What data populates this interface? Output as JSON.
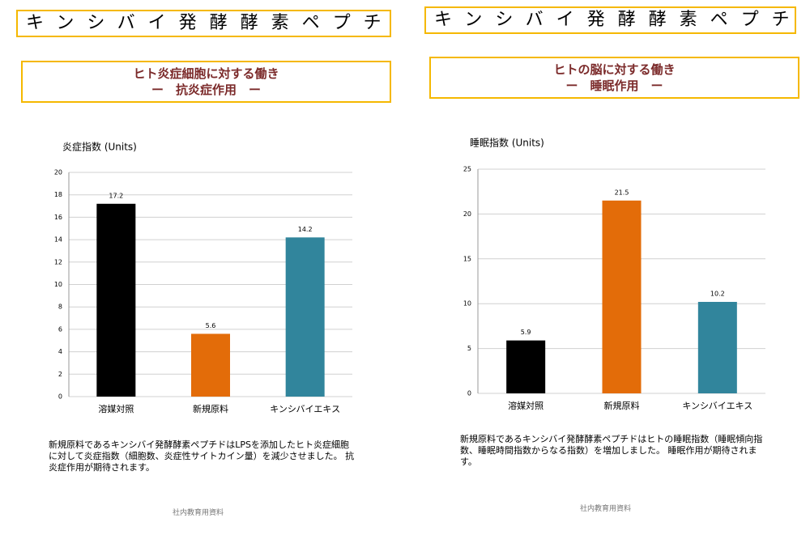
{
  "chart_data": [
    {
      "type": "bar",
      "header": "キンシバイ発酵酵素ペプチド",
      "title": "ヒト炎症細胞に対する働き",
      "subtitle": "ー　抗炎症作用　ー",
      "ylabel": "炎症指数 (Units)",
      "categories": [
        "溶媒対照",
        "新規原料",
        "キンシバイエキス"
      ],
      "values": [
        17.2,
        5.6,
        14.2
      ],
      "colors": [
        "#000000",
        "#e36c09",
        "#31859c"
      ],
      "ylim": [
        0,
        20
      ],
      "yticks": [
        0,
        2,
        4,
        6,
        8,
        10,
        12,
        14,
        16,
        18,
        20
      ],
      "grid": true,
      "caption": "新規原料であるキンシバイ発酵酵素ペプチドはLPSを添加したヒト炎症細胞に対して炎症指数（細胞数、炎症性サイトカイン量）を減少させました。 抗炎症作用が期待されます。",
      "footer": "社内教育用資料"
    },
    {
      "type": "bar",
      "header": "キンシバイ発酵酵素ペプチド",
      "title": "ヒトの脳に対する働き",
      "subtitle": "ー　睡眠作用　ー",
      "ylabel": "睡眠指数 (Units)",
      "categories": [
        "溶媒対照",
        "新規原料",
        "キンシバイエキス"
      ],
      "values": [
        5.9,
        21.5,
        10.2
      ],
      "colors": [
        "#000000",
        "#e36c09",
        "#31859c"
      ],
      "ylim": [
        0,
        25
      ],
      "yticks": [
        0,
        5,
        10,
        15,
        20,
        25
      ],
      "grid": true,
      "caption": "新規原料であるキンシバイ発酵酵素ペプチドはヒトの睡眠指数（睡眠傾向指数、睡眠時間指数からなる指数）を増加しました。 睡眠作用が期待されます。",
      "footer": "社内教育用資料"
    }
  ]
}
